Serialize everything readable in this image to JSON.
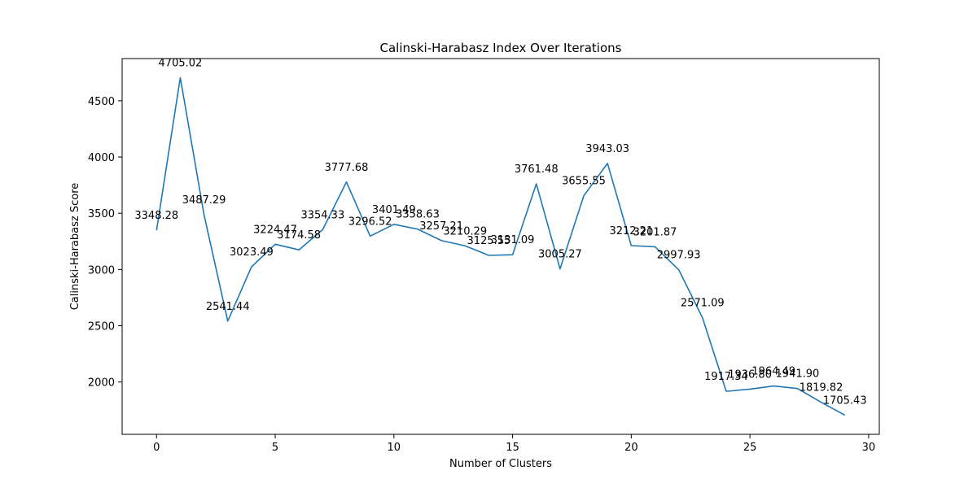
{
  "chart_data": {
    "type": "line",
    "title": "Calinski-Harabasz Index Over Iterations",
    "xlabel": "Number of Clusters",
    "ylabel": "Calinski-Harabasz Score",
    "xlim": [
      -1.45,
      30.45
    ],
    "ylim": [
      1535,
      4875
    ],
    "xticks": [
      0,
      5,
      10,
      15,
      20,
      25,
      30
    ],
    "yticks": [
      2000,
      2500,
      3000,
      3500,
      4000,
      4500
    ],
    "grid": false,
    "line_color": "#1f77b4",
    "x": [
      0,
      1,
      2,
      3,
      4,
      5,
      6,
      7,
      8,
      9,
      10,
      11,
      12,
      13,
      14,
      15,
      16,
      17,
      18,
      19,
      20,
      21,
      22,
      23,
      24,
      25,
      26,
      27,
      28,
      29
    ],
    "values": [
      3348.28,
      4705.02,
      3487.29,
      2541.44,
      3023.49,
      3224.47,
      3174.58,
      3354.33,
      3777.68,
      3296.52,
      3401.49,
      3358.63,
      3257.21,
      3210.29,
      3125.55,
      3131.09,
      3761.48,
      3005.27,
      3655.55,
      3943.03,
      3212.21,
      3201.87,
      2997.93,
      2571.09,
      1917.34,
      1936.8,
      1964.49,
      1941.9,
      1819.82,
      1705.43
    ],
    "labels": [
      "3348.28",
      "4705.02",
      "3487.29",
      "2541.44",
      "3023.49",
      "3224.47",
      "3174.58",
      "3354.33",
      "3777.68",
      "3296.52",
      "3401.49",
      "3358.63",
      "3257.21",
      "3210.29",
      "3125.55",
      "3131.09",
      "3761.48",
      "3005.27",
      "3655.55",
      "3943.03",
      "3212.21",
      "3201.87",
      "2997.93",
      "2571.09",
      "1917.34",
      "1936.80",
      "1964.49",
      "1941.90",
      "1819.82",
      "1705.43"
    ]
  }
}
